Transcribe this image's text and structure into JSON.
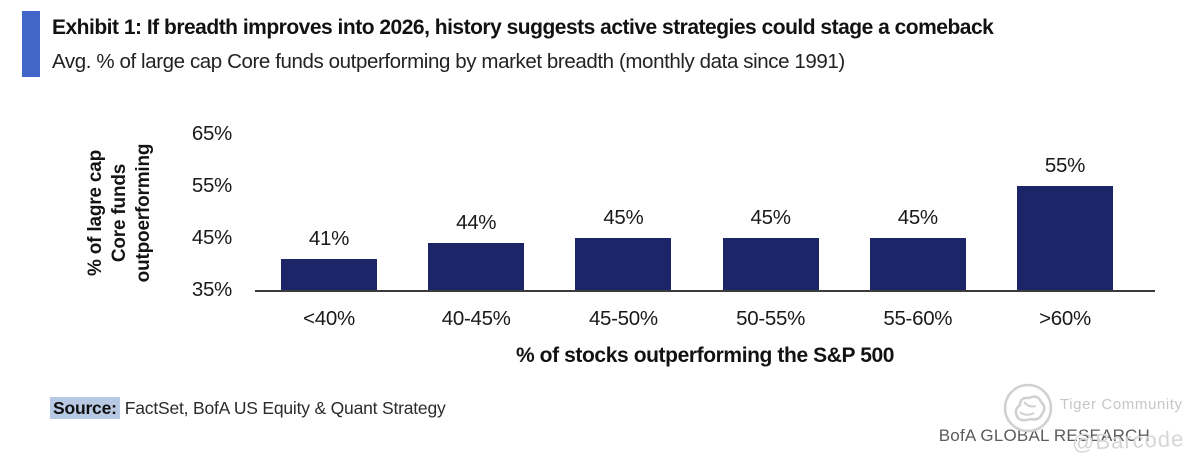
{
  "header": {
    "exhibit_title": "Exhibit 1: If breadth improves into 2026, history suggests active strategies could stage a comeback",
    "subtitle": "Avg. % of large cap Core funds outperforming by market breadth (monthly data since 1991)",
    "accent_color": "#4165c8"
  },
  "chart_data": {
    "type": "bar",
    "categories": [
      "<40%",
      "40-45%",
      "45-50%",
      "50-55%",
      "55-60%",
      ">60%"
    ],
    "values": [
      41,
      44,
      45,
      45,
      45,
      55
    ],
    "bar_labels": [
      "41%",
      "44%",
      "45%",
      "45%",
      "45%",
      "55%"
    ],
    "title": "Avg. % of large cap Core funds outperforming by market breadth (monthly data since 1991)",
    "xlabel": "% of stocks outperforming the S&P 500",
    "ylabel_lines": [
      "% of lagre cap",
      "Core funds",
      "outpoerforming"
    ],
    "yticks": [
      "65%",
      "55%",
      "45%",
      "35%"
    ],
    "ytick_values": [
      65,
      55,
      45,
      35
    ],
    "ylim": [
      35,
      65
    ],
    "bar_color": "#1b2567",
    "grid": false,
    "legend": "none"
  },
  "footer": {
    "source_label": "Source:",
    "source_text": "FactSet, BofA US Equity & Quant Strategy",
    "source_highlight": "#b7c9e3",
    "brand": "BofA GLOBAL RESEARCH"
  },
  "watermarks": {
    "tiger_community": "Tiger Community",
    "barcode": "@Barcode"
  }
}
